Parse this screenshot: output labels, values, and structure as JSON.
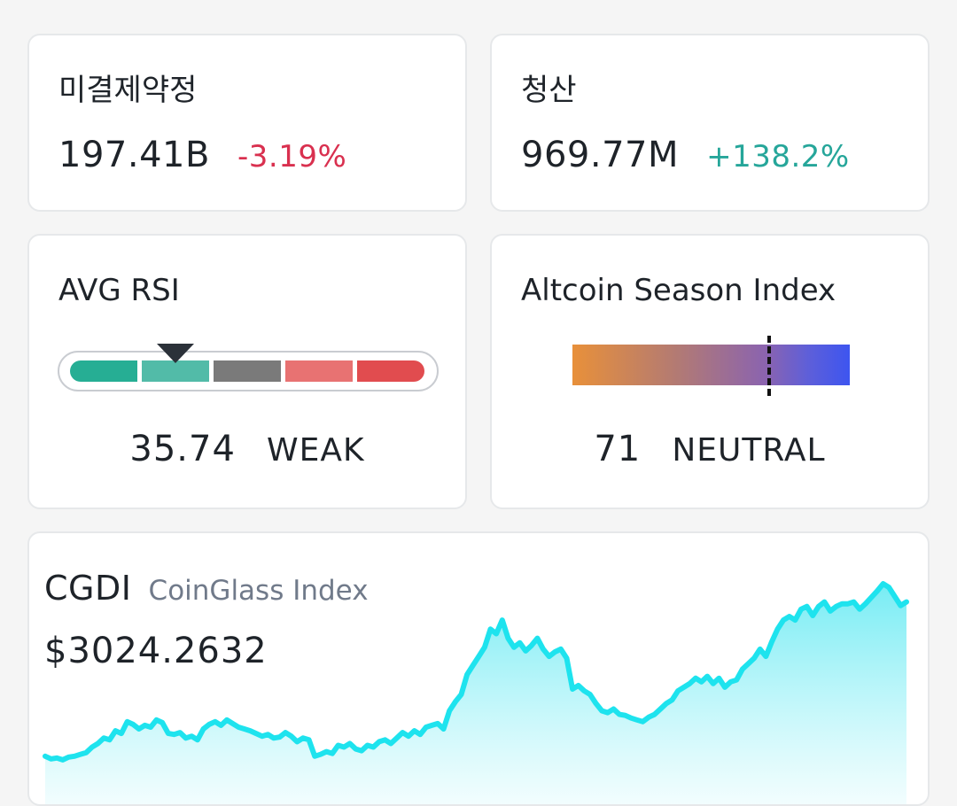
{
  "open_interest": {
    "title": "미결제약정",
    "value": "197.41B",
    "change": "-3.19%"
  },
  "liquidation": {
    "title": "청산",
    "value": "969.77M",
    "change": "+138.2%"
  },
  "avg_rsi": {
    "title": "AVG RSI",
    "value": "35.74",
    "label": "WEAK",
    "segment_colors": [
      "#26ae94",
      "#52bba8",
      "#7a7a7a",
      "#e87272",
      "#e14c4f"
    ],
    "pointer_segment": 1
  },
  "altcoin_season": {
    "title": "Altcoin Season Index",
    "value": "71",
    "label": "NEUTRAL",
    "marker_value": 71,
    "gradient_colors": [
      "#e8903a",
      "#8a63b0",
      "#3d55f0"
    ]
  },
  "cgdi": {
    "symbol": "CGDI",
    "name": "CoinGlass Index",
    "price": "$3024.2632",
    "line_color": "#1ee3ee",
    "chart_data": {
      "type": "area",
      "series": [
        {
          "values": [
            10,
            7,
            8,
            6,
            9,
            10,
            12,
            14,
            20,
            24,
            30,
            28,
            38,
            35,
            48,
            45,
            40,
            44,
            42,
            50,
            47,
            35,
            34,
            36,
            30,
            32,
            28,
            40,
            45,
            48,
            44,
            50,
            46,
            42,
            40,
            38,
            35,
            32,
            34,
            30,
            31,
            36,
            32,
            26,
            30,
            28,
            10,
            12,
            15,
            13,
            22,
            20,
            24,
            18,
            16,
            22,
            20,
            26,
            28,
            24,
            30,
            36,
            32,
            38,
            34,
            42,
            44,
            46,
            40,
            60,
            70,
            78,
            100,
            110,
            120,
            130,
            150,
            145,
            160,
            140,
            130,
            135,
            126,
            132,
            140,
            128,
            120,
            125,
            128,
            118,
            84,
            88,
            82,
            78,
            68,
            60,
            58,
            62,
            56,
            55,
            52,
            50,
            48,
            53,
            56,
            62,
            68,
            72,
            82,
            86,
            90,
            96,
            92,
            98,
            90,
            96,
            86,
            92,
            94,
            106,
            112,
            118,
            128,
            120,
            136,
            150,
            160,
            164,
            160,
            172,
            175,
            165,
            175,
            180,
            170,
            175,
            178,
            178,
            180,
            172,
            178,
            185,
            192,
            200,
            196,
            186,
            176,
            180
          ]
        }
      ]
    }
  }
}
